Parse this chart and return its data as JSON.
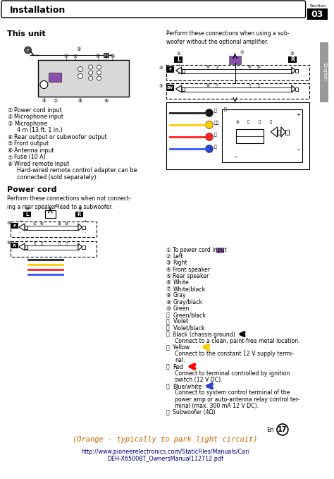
{
  "title": "Installation",
  "section": "03",
  "bg_color": "#ffffff",
  "this_unit_label": "This unit",
  "power_cord_label": "Power cord",
  "this_unit_items": [
    [
      "①",
      "Power cord input"
    ],
    [
      "②",
      "Microphone input"
    ],
    [
      "③",
      "Microphone"
    ],
    [
      "",
      "4 m (13 ft. 1 in.)"
    ],
    [
      "④",
      "Rear output or subwoofer output"
    ],
    [
      "⑤",
      "Front output"
    ],
    [
      "⑥",
      "Antenna input"
    ],
    [
      "⑦",
      "Fuse (10 A)"
    ],
    [
      "⑧",
      "Wired remote input"
    ],
    [
      "",
      "Hard-wired remote control adapter can be"
    ],
    [
      "",
      "connected (sold separately)."
    ]
  ],
  "power_cord_text": "Perform these connections when not connect-\ning a rear speaker lead to a subwoofer.",
  "subwoofer_text": "Perform these connections when using a sub-\nwoofer without the optional amplifier.",
  "right_legend_items": [
    [
      "①",
      "To power cord input",
      "purple_square"
    ],
    [
      "②",
      "Left",
      ""
    ],
    [
      "③",
      "Right",
      ""
    ],
    [
      "④",
      "Front speaker",
      ""
    ],
    [
      "⑤",
      "Rear speaker",
      ""
    ],
    [
      "⑥",
      "White",
      ""
    ],
    [
      "⑦",
      "White/black",
      ""
    ],
    [
      "⑧",
      "Gray",
      ""
    ],
    [
      "⑨",
      "Gray/black",
      ""
    ],
    [
      "⑩",
      "Green",
      ""
    ],
    [
      "⑪",
      "Green/black",
      ""
    ],
    [
      "⑫",
      "Violet",
      ""
    ],
    [
      "⑬",
      "Violet/black",
      ""
    ],
    [
      "⑭",
      "Black (chassis ground)",
      "black_arrow"
    ],
    [
      "",
      "Connect to a clean, paint-free metal location.",
      ""
    ],
    [
      "⑮",
      "Yellow",
      "yellow_arrow"
    ],
    [
      "",
      "Connect to the constant 12 V supply termi-",
      ""
    ],
    [
      "",
      "nal.",
      ""
    ],
    [
      "⑯",
      "Red",
      "red_arrow"
    ],
    [
      "",
      "Connect to terminal controlled by ignition",
      ""
    ],
    [
      "",
      "switch (12 V DC).",
      ""
    ],
    [
      "⑰",
      "Blue/white",
      "blue_arrow"
    ],
    [
      "",
      "Connect to system control terminal of the",
      ""
    ],
    [
      "",
      "power amp or auto-antenna relay control ter-",
      ""
    ],
    [
      "",
      "minal (max. 300 mA 12 V DC).",
      ""
    ],
    [
      "⑱",
      "Subwoofer (4Ω)",
      ""
    ]
  ],
  "bottom_orange_text": "(Orange - typically to park light circuit)",
  "bottom_url_line1": "http://www.pioneerelectronics.com/StaticFiles/Manuals/Car/",
  "bottom_url_line2": "DEH-X6500BT_OwnersManual112712.pdf",
  "english_label": "English",
  "en_page": "17"
}
